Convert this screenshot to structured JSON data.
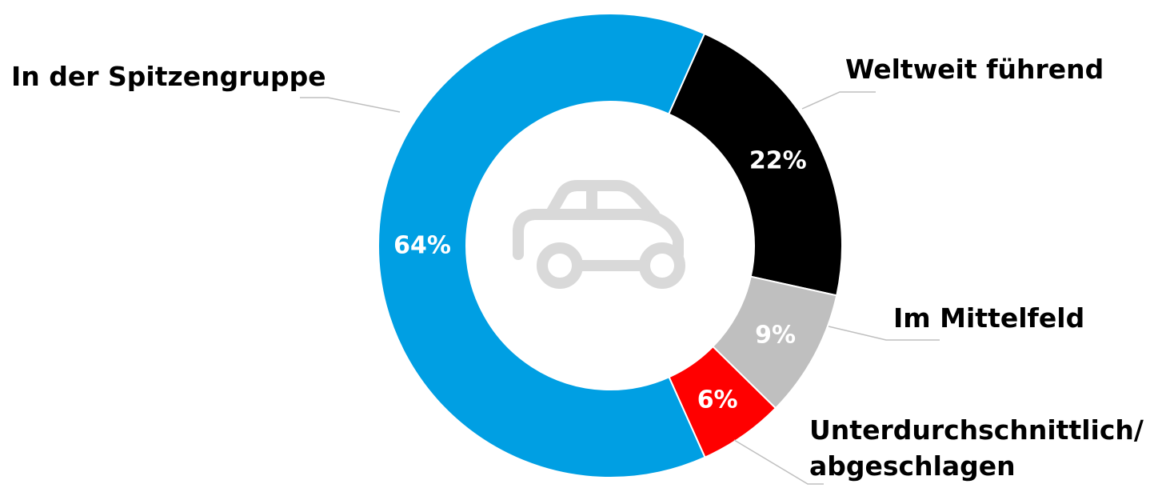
{
  "chart_data": {
    "type": "pie",
    "variant": "donut",
    "center_icon": "car-icon",
    "categories": [
      "Weltweit führend",
      "Im Mittelfeld",
      "Unterdurchschnittlich/ abgeschlagen",
      "In der Spitzengruppe"
    ],
    "values": [
      22,
      9,
      6,
      64
    ],
    "value_labels": [
      "22%",
      "9%",
      "6%",
      "64%"
    ],
    "colors": [
      "#000000",
      "#bfbfbf",
      "#ff0000",
      "#009fe3"
    ],
    "value_label_colors": [
      "#ffffff",
      "#ffffff",
      "#ffffff",
      "#ffffff"
    ],
    "label_lines": {
      "weltweit": "Weltweit führend",
      "mittelfeld": "Im Mittelfeld",
      "unterdurch_1": "Unterdurchschnittlich/",
      "unterdurch_2": "abgeschlagen",
      "spitze": "In der Spitzengruppe"
    },
    "legend": "none"
  }
}
